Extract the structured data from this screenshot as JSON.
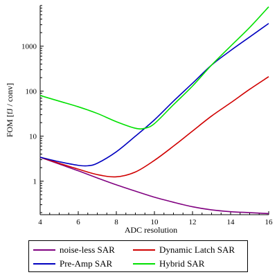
{
  "chart_data": {
    "type": "line",
    "xlabel": "ADC resolution",
    "ylabel": "FOM [fJ / conv]",
    "xlim": [
      4,
      16
    ],
    "ylim": [
      0.18,
      8000
    ],
    "yscale": "log",
    "xticks": [
      4,
      6,
      8,
      10,
      12,
      14,
      16
    ],
    "xtick_labels": [
      "4",
      "6",
      "8",
      "10",
      "12",
      "14",
      "16"
    ],
    "yticks": [
      1,
      10,
      100,
      1000
    ],
    "ytick_labels": [
      "1",
      "10",
      "100",
      "1000"
    ],
    "grid": false,
    "legend_position": "bottom",
    "series": [
      {
        "name": "noise-less SAR",
        "color": "#800080",
        "x": [
          4,
          5,
          6,
          7,
          8,
          9,
          10,
          11,
          12,
          13,
          14,
          15,
          16
        ],
        "y": [
          3.4,
          2.4,
          1.7,
          1.18,
          0.83,
          0.6,
          0.44,
          0.34,
          0.27,
          0.23,
          0.21,
          0.2,
          0.19
        ]
      },
      {
        "name": "Dynamic Latch SAR",
        "color": "#d00000",
        "x": [
          4,
          5,
          6,
          7,
          8,
          9,
          10,
          11,
          12,
          13,
          14,
          15,
          16
        ],
        "y": [
          3.4,
          2.5,
          1.85,
          1.4,
          1.25,
          1.6,
          2.9,
          6.0,
          13,
          28,
          55,
          110,
          210
        ]
      },
      {
        "name": "Pre-Amp SAR",
        "color": "#0000c0",
        "x": [
          4,
          5,
          6,
          6.5,
          7,
          8,
          9,
          10,
          11,
          12,
          13,
          14,
          15,
          16
        ],
        "y": [
          3.4,
          2.7,
          2.25,
          2.2,
          2.5,
          4.5,
          10,
          23,
          60,
          150,
          380,
          800,
          1600,
          3200
        ]
      },
      {
        "name": "Hybrid SAR",
        "color": "#00e000",
        "x": [
          4,
          5,
          6,
          7,
          8,
          9,
          9.5,
          10,
          11,
          12,
          13,
          14,
          15,
          16
        ],
        "y": [
          80,
          60,
          45,
          32,
          21,
          15,
          15,
          19,
          50,
          130,
          380,
          1000,
          2600,
          7500
        ]
      }
    ]
  }
}
